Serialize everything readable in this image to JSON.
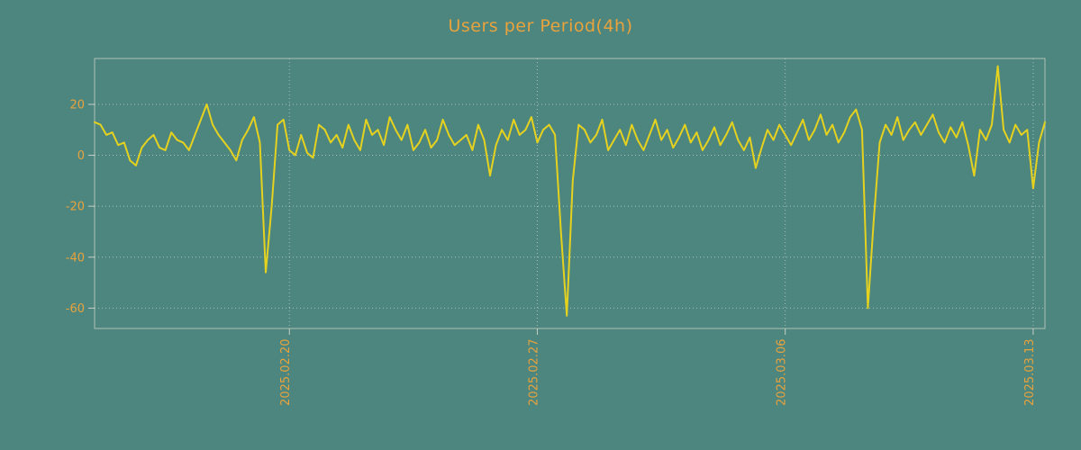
{
  "colors": {
    "background": "#4d857f",
    "text": "#E8A33D",
    "line": "#E5D21F",
    "grid": "#cfd8d2",
    "frame": "#c9cfc5"
  },
  "chart_data": {
    "type": "line",
    "title": "Users per Period(4h)",
    "xlabel": "",
    "ylabel": "",
    "ylim": [
      -68,
      38
    ],
    "y_ticks": [
      20,
      0,
      -20,
      -40,
      -60
    ],
    "x_ticks": [
      {
        "label": "2025.02.20",
        "index": 33
      },
      {
        "label": "2025.02.27",
        "index": 75
      },
      {
        "label": "2025.03.06",
        "index": 117
      },
      {
        "label": "2025.03.13",
        "index": 159
      }
    ],
    "grid": "dotted",
    "legend_position": "none",
    "series": [
      {
        "name": "Users",
        "values": [
          13,
          12,
          8,
          9,
          4,
          5,
          -2,
          -4,
          3,
          6,
          8,
          3,
          2,
          9,
          6,
          5,
          2,
          8,
          14,
          20,
          12,
          8,
          5,
          2,
          -2,
          6,
          10,
          15,
          5,
          -46,
          -20,
          12,
          14,
          2,
          0,
          8,
          1,
          -1,
          12,
          10,
          5,
          8,
          3,
          12,
          6,
          2,
          14,
          8,
          10,
          4,
          15,
          10,
          6,
          12,
          2,
          5,
          10,
          3,
          6,
          14,
          8,
          4,
          6,
          8,
          2,
          12,
          6,
          -8,
          4,
          10,
          6,
          14,
          8,
          10,
          15,
          5,
          10,
          12,
          8,
          -30,
          -63,
          -10,
          12,
          10,
          5,
          8,
          14,
          2,
          6,
          10,
          4,
          12,
          6,
          2,
          8,
          14,
          6,
          10,
          3,
          7,
          12,
          5,
          9,
          2,
          6,
          11,
          4,
          8,
          13,
          6,
          2,
          7,
          -5,
          3,
          10,
          6,
          12,
          8,
          4,
          9,
          14,
          6,
          10,
          16,
          8,
          12,
          5,
          9,
          15,
          18,
          10,
          -60,
          -25,
          5,
          12,
          8,
          15,
          6,
          10,
          13,
          8,
          12,
          16,
          9,
          5,
          11,
          7,
          13,
          4,
          -8,
          10,
          6,
          12,
          35,
          10,
          5,
          12,
          8,
          10,
          -13,
          5,
          13
        ]
      }
    ]
  }
}
